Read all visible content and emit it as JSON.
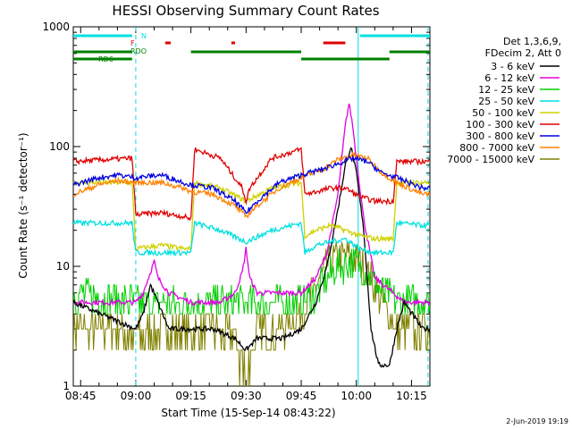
{
  "chart_data": {
    "type": "line",
    "title": "HESSI Observing Summary Count Rates",
    "xlabel": "Start Time (15-Sep-14 08:43:22)",
    "ylabel": "Count Rate (s⁻¹ detector⁻¹)",
    "y_scale": "log",
    "ylim": [
      1,
      1000
    ],
    "xlim_minutes": [
      -2,
      95
    ],
    "x_ticks": [
      {
        "label": "08:45",
        "min": 0
      },
      {
        "label": "09:00",
        "min": 15
      },
      {
        "label": "09:15",
        "min": 30
      },
      {
        "label": "09:30",
        "min": 45
      },
      {
        "label": "09:45",
        "min": 60
      },
      {
        "label": "10:00",
        "min": 75
      },
      {
        "label": "10:15",
        "min": 90
      }
    ],
    "y_ticks": [
      {
        "label": "1",
        "v": 1
      },
      {
        "label": "10",
        "v": 10
      },
      {
        "label": "100",
        "v": 100
      },
      {
        "label": "1000",
        "v": 1000
      }
    ],
    "legend_header": [
      "Det 1,3,6,9,",
      "FDecim 2, Att 0"
    ],
    "legend_position": "right",
    "series": [
      {
        "name": "3 - 6 keV",
        "color": "#000000",
        "points": [
          [
            -2,
            5
          ],
          [
            15,
            3
          ],
          [
            17,
            4
          ],
          [
            19,
            7
          ],
          [
            21,
            5
          ],
          [
            24,
            3
          ],
          [
            30,
            3
          ],
          [
            36,
            3
          ],
          [
            42,
            2.5
          ],
          [
            45,
            2
          ],
          [
            48,
            2.5
          ],
          [
            55,
            2.5
          ],
          [
            60,
            3
          ],
          [
            64,
            5
          ],
          [
            67,
            10
          ],
          [
            70,
            30
          ],
          [
            72,
            70
          ],
          [
            73.5,
            100
          ],
          [
            75,
            60
          ],
          [
            77,
            20
          ],
          [
            79,
            3
          ],
          [
            81,
            1.5
          ],
          [
            84,
            1.5
          ],
          [
            86,
            3
          ],
          [
            88,
            5
          ],
          [
            93,
            3
          ]
        ]
      },
      {
        "name": "6 - 12 keV",
        "color": "#e000e0",
        "points": [
          [
            -2,
            5
          ],
          [
            15,
            5
          ],
          [
            17,
            6
          ],
          [
            19,
            9
          ],
          [
            20,
            11
          ],
          [
            21,
            8
          ],
          [
            24,
            6
          ],
          [
            30,
            5
          ],
          [
            38,
            5
          ],
          [
            42,
            6
          ],
          [
            44,
            9
          ],
          [
            45,
            14
          ],
          [
            46,
            8
          ],
          [
            48,
            6
          ],
          [
            55,
            6
          ],
          [
            60,
            6
          ],
          [
            64,
            8
          ],
          [
            67,
            13
          ],
          [
            70,
            40
          ],
          [
            72,
            150
          ],
          [
            73,
            230
          ],
          [
            74,
            150
          ],
          [
            75,
            80
          ],
          [
            77,
            25
          ],
          [
            80,
            8
          ],
          [
            85,
            6
          ],
          [
            88,
            5
          ],
          [
            93,
            5
          ]
        ]
      },
      {
        "name": "12 - 25 keV",
        "color": "#00d000",
        "points": [
          [
            -2,
            6
          ],
          [
            15,
            5
          ],
          [
            20,
            5
          ],
          [
            30,
            5
          ],
          [
            40,
            5
          ],
          [
            50,
            5
          ],
          [
            60,
            5
          ],
          [
            64,
            6
          ],
          [
            67,
            8
          ],
          [
            70,
            10
          ],
          [
            73,
            11
          ],
          [
            76,
            10
          ],
          [
            79,
            8
          ],
          [
            82,
            6
          ],
          [
            86,
            5
          ],
          [
            93,
            5
          ]
        ]
      },
      {
        "name": "25 - 50 keV",
        "color": "#00e0e0",
        "points": [
          [
            -2,
            23
          ],
          [
            14,
            23
          ],
          [
            15,
            13
          ],
          [
            22,
            13
          ],
          [
            28,
            13
          ],
          [
            30,
            13
          ],
          [
            31,
            23
          ],
          [
            38,
            20
          ],
          [
            45,
            16
          ],
          [
            52,
            20
          ],
          [
            60,
            23
          ],
          [
            61,
            13
          ],
          [
            64,
            15
          ],
          [
            68,
            16
          ],
          [
            72,
            17
          ],
          [
            76,
            14
          ],
          [
            80,
            13
          ],
          [
            85,
            13
          ],
          [
            86,
            23
          ],
          [
            93,
            22
          ]
        ]
      },
      {
        "name": "50 - 100 keV",
        "color": "#d0d000",
        "points": [
          [
            -2,
            50
          ],
          [
            14,
            50
          ],
          [
            15,
            14
          ],
          [
            22,
            15
          ],
          [
            28,
            14
          ],
          [
            30,
            14
          ],
          [
            31,
            50
          ],
          [
            38,
            45
          ],
          [
            45,
            35
          ],
          [
            52,
            45
          ],
          [
            60,
            50
          ],
          [
            61,
            18
          ],
          [
            64,
            20
          ],
          [
            68,
            22
          ],
          [
            72,
            20
          ],
          [
            76,
            18
          ],
          [
            80,
            17
          ],
          [
            85,
            17
          ],
          [
            86,
            50
          ],
          [
            93,
            50
          ]
        ]
      },
      {
        "name": "100 - 300 keV",
        "color": "#e00000",
        "points": [
          [
            -2,
            75
          ],
          [
            14,
            80
          ],
          [
            15,
            27
          ],
          [
            22,
            28
          ],
          [
            28,
            26
          ],
          [
            30,
            25
          ],
          [
            31,
            95
          ],
          [
            38,
            80
          ],
          [
            44,
            45
          ],
          [
            45,
            35
          ],
          [
            46,
            45
          ],
          [
            52,
            80
          ],
          [
            60,
            95
          ],
          [
            61,
            40
          ],
          [
            64,
            42
          ],
          [
            68,
            45
          ],
          [
            72,
            45
          ],
          [
            76,
            38
          ],
          [
            80,
            35
          ],
          [
            85,
            35
          ],
          [
            86,
            75
          ],
          [
            93,
            75
          ]
        ]
      },
      {
        "name": "300 - 800 keV",
        "color": "#0000e0",
        "points": [
          [
            -2,
            48
          ],
          [
            5,
            55
          ],
          [
            10,
            58
          ],
          [
            15,
            55
          ],
          [
            22,
            58
          ],
          [
            28,
            50
          ],
          [
            30,
            48
          ],
          [
            36,
            45
          ],
          [
            42,
            35
          ],
          [
            45,
            28
          ],
          [
            48,
            35
          ],
          [
            54,
            50
          ],
          [
            60,
            58
          ],
          [
            66,
            65
          ],
          [
            70,
            72
          ],
          [
            74,
            80
          ],
          [
            78,
            75
          ],
          [
            82,
            60
          ],
          [
            86,
            55
          ],
          [
            93,
            45
          ]
        ]
      },
      {
        "name": "800 - 7000 keV",
        "color": "#ff8000",
        "points": [
          [
            -2,
            40
          ],
          [
            5,
            48
          ],
          [
            10,
            52
          ],
          [
            15,
            50
          ],
          [
            22,
            50
          ],
          [
            28,
            45
          ],
          [
            30,
            42
          ],
          [
            36,
            40
          ],
          [
            42,
            32
          ],
          [
            45,
            26
          ],
          [
            48,
            32
          ],
          [
            54,
            45
          ],
          [
            60,
            55
          ],
          [
            66,
            65
          ],
          [
            70,
            78
          ],
          [
            74,
            85
          ],
          [
            78,
            80
          ],
          [
            82,
            60
          ],
          [
            86,
            50
          ],
          [
            93,
            40
          ]
        ]
      },
      {
        "name": "7000 - 15000 keV",
        "color": "#808000",
        "points": [
          [
            -2,
            3
          ],
          [
            10,
            3
          ],
          [
            15,
            2.5
          ],
          [
            20,
            3
          ],
          [
            30,
            3
          ],
          [
            36,
            3
          ],
          [
            42,
            2.5
          ],
          [
            45,
            1.2
          ],
          [
            48,
            3
          ],
          [
            55,
            3
          ],
          [
            60,
            4
          ],
          [
            64,
            7
          ],
          [
            67,
            10
          ],
          [
            70,
            12
          ],
          [
            73,
            12
          ],
          [
            76,
            11
          ],
          [
            79,
            8
          ],
          [
            82,
            5
          ],
          [
            86,
            3
          ],
          [
            93,
            3
          ]
        ]
      }
    ],
    "flag_bars": [
      {
        "label": "N",
        "color": "#00e0e0",
        "segments": [
          [
            -2,
            14
          ],
          [
            76,
            95
          ]
        ]
      },
      {
        "label": "F",
        "color": "#e00000",
        "segments": [
          [
            23,
            24.5
          ],
          [
            41,
            42
          ],
          [
            66,
            72
          ]
        ]
      },
      {
        "label": "RDO",
        "color": "#008000",
        "segments": [
          [
            -2,
            14
          ],
          [
            30,
            60
          ],
          [
            84,
            95
          ]
        ]
      },
      {
        "label": "RD6",
        "color": "#008000",
        "segments": [
          [
            -2,
            14
          ],
          [
            60,
            84
          ]
        ]
      }
    ],
    "vertical_markers": [
      {
        "min": 15,
        "color": "#00e0e0",
        "style": "dashed"
      },
      {
        "min": 75.5,
        "color": "#00e0e0",
        "style": "solid"
      },
      {
        "min": 94.5,
        "color": "#00e0e0",
        "style": "dashed"
      }
    ]
  },
  "footer": {
    "date_stamp": "2-Jun-2019 19:19"
  }
}
